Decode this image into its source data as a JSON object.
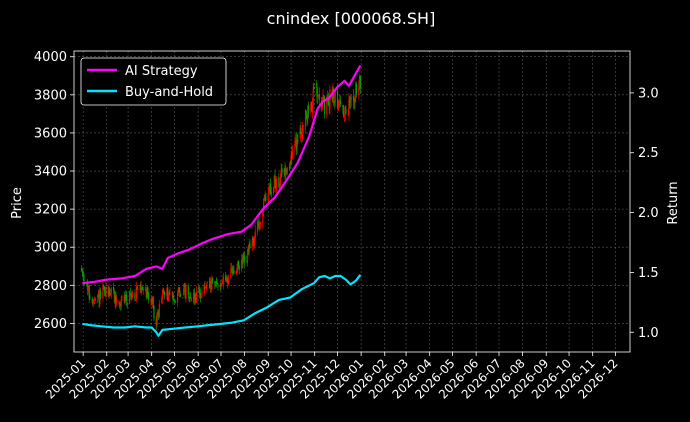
{
  "chart_data": {
    "type": "line",
    "title": "cnindex [000068.SH]",
    "ylabel_left": "Price",
    "ylabel_right": "Return",
    "xlim": [
      "2024-12-20",
      "2026-12-20"
    ],
    "ylim_left": [
      2450,
      4030
    ],
    "ylim_right": [
      0.835,
      3.35
    ],
    "grid": true,
    "legend_placement": "top-left",
    "x_ticks": [
      "2025-01",
      "2025-02",
      "2025-03",
      "2025-04",
      "2025-05",
      "2025-06",
      "2025-07",
      "2025-08",
      "2025-09",
      "2025-10",
      "2025-11",
      "2025-12",
      "2026-01",
      "2026-02",
      "2026-03",
      "2026-04",
      "2026-05",
      "2026-06",
      "2026-07",
      "2026-08",
      "2026-09",
      "2026-10",
      "2026-11",
      "2026-12"
    ],
    "y_ticks_left": [
      2600,
      2800,
      3000,
      3200,
      3400,
      3600,
      3800,
      4000
    ],
    "y_ticks_right": [
      1.0,
      1.5,
      2.0,
      2.5,
      3.0
    ],
    "y_tick_labels_right": [
      "1.0",
      "1.5",
      "2.0",
      "2.5",
      "3.0"
    ],
    "candles": {
      "up_color": "#ff0000",
      "down_color": "#00a000",
      "anchors": [
        [
          "2024-12-30",
          2880
        ],
        [
          "2025-01-08",
          2760
        ],
        [
          "2025-01-15",
          2700
        ],
        [
          "2025-01-27",
          2760
        ],
        [
          "2025-02-07",
          2770
        ],
        [
          "2025-02-17",
          2700
        ],
        [
          "2025-02-27",
          2740
        ],
        [
          "2025-03-10",
          2750
        ],
        [
          "2025-03-20",
          2800
        ],
        [
          "2025-04-01",
          2720
        ],
        [
          "2025-04-07",
          2600
        ],
        [
          "2025-04-15",
          2760
        ],
        [
          "2025-04-28",
          2740
        ],
        [
          "2025-05-12",
          2770
        ],
        [
          "2025-05-26",
          2740
        ],
        [
          "2025-06-09",
          2780
        ],
        [
          "2025-06-23",
          2800
        ],
        [
          "2025-07-07",
          2830
        ],
        [
          "2025-07-21",
          2880
        ],
        [
          "2025-08-04",
          2950
        ],
        [
          "2025-08-18",
          3100
        ],
        [
          "2025-09-01",
          3300
        ],
        [
          "2025-09-15",
          3350
        ],
        [
          "2025-09-29",
          3450
        ],
        [
          "2025-10-13",
          3600
        ],
        [
          "2025-10-27",
          3750
        ],
        [
          "2025-11-05",
          3850
        ],
        [
          "2025-11-14",
          3720
        ],
        [
          "2025-11-25",
          3820
        ],
        [
          "2025-12-05",
          3750
        ],
        [
          "2025-12-12",
          3680
        ],
        [
          "2025-12-19",
          3780
        ],
        [
          "2025-12-31",
          3860
        ]
      ]
    },
    "series": [
      {
        "name": "AI Strategy",
        "color": "#ff00ff",
        "axis": "right",
        "points": [
          [
            "2024-12-31",
            1.41
          ],
          [
            "2025-01-15",
            1.42
          ],
          [
            "2025-02-01",
            1.44
          ],
          [
            "2025-02-20",
            1.45
          ],
          [
            "2025-03-10",
            1.47
          ],
          [
            "2025-03-25",
            1.53
          ],
          [
            "2025-04-07",
            1.55
          ],
          [
            "2025-04-15",
            1.53
          ],
          [
            "2025-04-22",
            1.62
          ],
          [
            "2025-05-06",
            1.66
          ],
          [
            "2025-05-20",
            1.69
          ],
          [
            "2025-06-05",
            1.74
          ],
          [
            "2025-06-20",
            1.78
          ],
          [
            "2025-07-10",
            1.82
          ],
          [
            "2025-07-28",
            1.84
          ],
          [
            "2025-08-10",
            1.9
          ],
          [
            "2025-08-25",
            2.03
          ],
          [
            "2025-09-10",
            2.13
          ],
          [
            "2025-09-25",
            2.27
          ],
          [
            "2025-10-10",
            2.42
          ],
          [
            "2025-10-25",
            2.64
          ],
          [
            "2025-11-05",
            2.87
          ],
          [
            "2025-11-12",
            2.93
          ],
          [
            "2025-11-20",
            2.96
          ],
          [
            "2025-12-01",
            3.05
          ],
          [
            "2025-12-10",
            3.1
          ],
          [
            "2025-12-16",
            3.06
          ],
          [
            "2025-12-24",
            3.15
          ],
          [
            "2025-12-31",
            3.23
          ]
        ]
      },
      {
        "name": "Buy-and-Hold",
        "color": "#00e5ff",
        "axis": "right",
        "points": [
          [
            "2024-12-31",
            1.07
          ],
          [
            "2025-01-10",
            1.06
          ],
          [
            "2025-01-25",
            1.05
          ],
          [
            "2025-02-10",
            1.04
          ],
          [
            "2025-02-25",
            1.04
          ],
          [
            "2025-03-10",
            1.05
          ],
          [
            "2025-03-25",
            1.04
          ],
          [
            "2025-04-01",
            1.04
          ],
          [
            "2025-04-07",
            1.0
          ],
          [
            "2025-04-10",
            0.97
          ],
          [
            "2025-04-15",
            1.02
          ],
          [
            "2025-04-30",
            1.03
          ],
          [
            "2025-05-15",
            1.04
          ],
          [
            "2025-06-01",
            1.05
          ],
          [
            "2025-06-15",
            1.06
          ],
          [
            "2025-07-01",
            1.07
          ],
          [
            "2025-07-15",
            1.08
          ],
          [
            "2025-07-31",
            1.1
          ],
          [
            "2025-08-15",
            1.16
          ],
          [
            "2025-08-31",
            1.21
          ],
          [
            "2025-09-15",
            1.27
          ],
          [
            "2025-09-30",
            1.29
          ],
          [
            "2025-10-15",
            1.36
          ],
          [
            "2025-10-31",
            1.41
          ],
          [
            "2025-11-07",
            1.46
          ],
          [
            "2025-11-14",
            1.47
          ],
          [
            "2025-11-21",
            1.45
          ],
          [
            "2025-11-28",
            1.47
          ],
          [
            "2025-12-05",
            1.47
          ],
          [
            "2025-12-12",
            1.44
          ],
          [
            "2025-12-18",
            1.4
          ],
          [
            "2025-12-25",
            1.43
          ],
          [
            "2025-12-31",
            1.48
          ]
        ]
      }
    ]
  }
}
